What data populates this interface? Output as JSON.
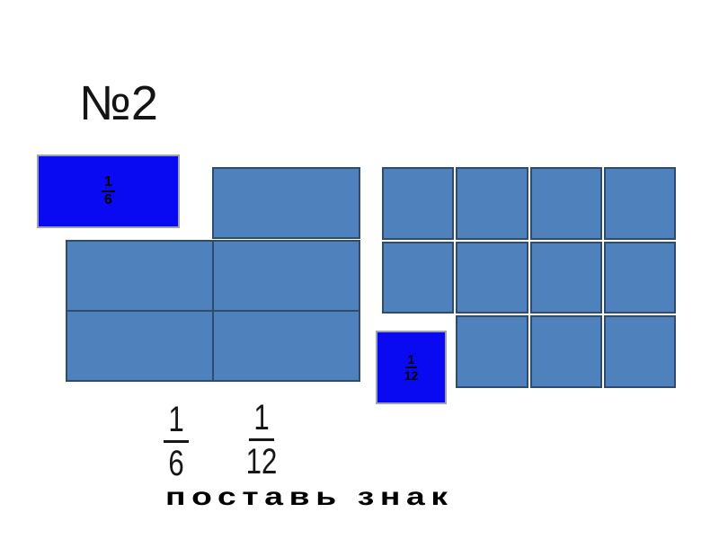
{
  "slide": {
    "title": "№2",
    "instruction": "поставь знак",
    "background": "#ffffff"
  },
  "colors": {
    "label_fill": "#0a0af2",
    "label_border": "#9aa2b4",
    "cell_fill": "#4f81bd",
    "cell_border": "#2e4d6e",
    "text": "#000000"
  },
  "sixths_label": {
    "numerator": "1",
    "denominator": "6"
  },
  "twelfths_label": {
    "numerator": "1",
    "denominator": "12"
  },
  "sixths_model": {
    "shown_parts": 5,
    "layout": "1 cell top-right + 2x2 grid"
  },
  "twelfths_model": {
    "shown_parts": 11,
    "rows": 3,
    "cols": 4,
    "missing_cell": "row3-col1"
  },
  "comparison": {
    "left": {
      "numerator": "1",
      "denominator": "6"
    },
    "right": {
      "numerator": "1",
      "denominator": "12"
    }
  }
}
